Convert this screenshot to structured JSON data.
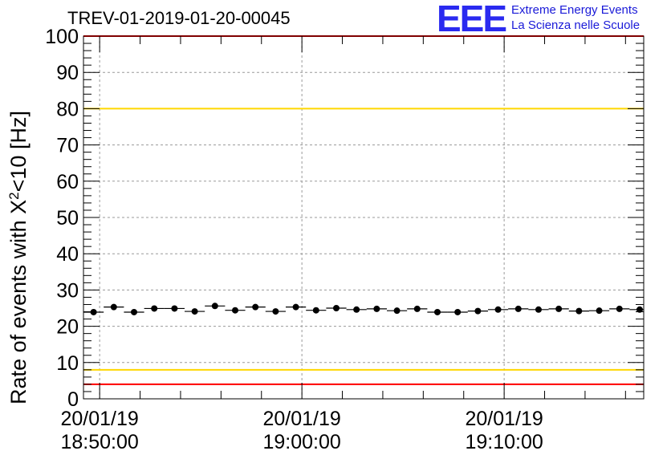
{
  "title": "TREV-01-2019-01-20-00045",
  "logo": {
    "mark": "EEE",
    "line1": "Extreme Energy Events",
    "line2": "La Scienza nelle Scuole"
  },
  "colors": {
    "data": "#000000",
    "grid": "#9a9a9a",
    "red_limit": "#ff0000",
    "yellow_limit": "#ffd700",
    "logo": "#2a2af0"
  },
  "chart_data": {
    "type": "scatter",
    "title": "TREV-01-2019-01-20-00045",
    "ylabel": "Rate of events with X²<10 [Hz]",
    "ylabel_parts": {
      "base": "Rate of events with X",
      "sup": "2",
      "rest": "<10 [Hz]"
    },
    "xlabel": "",
    "ylim": [
      0,
      100
    ],
    "yticks": [
      0,
      10,
      20,
      30,
      40,
      50,
      60,
      70,
      80,
      90,
      100
    ],
    "xlim_minutes": [
      -0.8,
      26.9
    ],
    "xticks": [
      {
        "minute": 0,
        "date": "20/01/19",
        "time": "18:50:00"
      },
      {
        "minute": 10,
        "date": "20/01/19",
        "time": "19:00:00"
      },
      {
        "minute": 20,
        "date": "20/01/19",
        "time": "19:10:00"
      }
    ],
    "grid": true,
    "reference_lines": [
      {
        "value": 100,
        "color": "red"
      },
      {
        "value": 80,
        "color": "yellow"
      },
      {
        "value": 8,
        "color": "yellow"
      },
      {
        "value": 4,
        "color": "red"
      }
    ],
    "bin_width_minutes": 1,
    "series": [
      {
        "name": "rate",
        "x_minutes": [
          -0.3,
          0.7,
          1.7,
          2.7,
          3.7,
          4.7,
          5.7,
          6.7,
          7.7,
          8.7,
          9.7,
          10.7,
          11.7,
          12.7,
          13.7,
          14.7,
          15.7,
          16.7,
          17.7,
          18.7,
          19.7,
          20.7,
          21.7,
          22.7,
          23.7,
          24.7,
          25.7,
          26.7
        ],
        "values": [
          23.9,
          25.3,
          23.9,
          24.9,
          24.9,
          24.1,
          25.6,
          24.4,
          25.3,
          24.1,
          25.3,
          24.4,
          25.0,
          24.6,
          24.8,
          24.3,
          24.8,
          23.9,
          23.9,
          24.2,
          24.6,
          24.8,
          24.6,
          24.8,
          24.2,
          24.3,
          24.8,
          24.6
        ]
      }
    ]
  }
}
